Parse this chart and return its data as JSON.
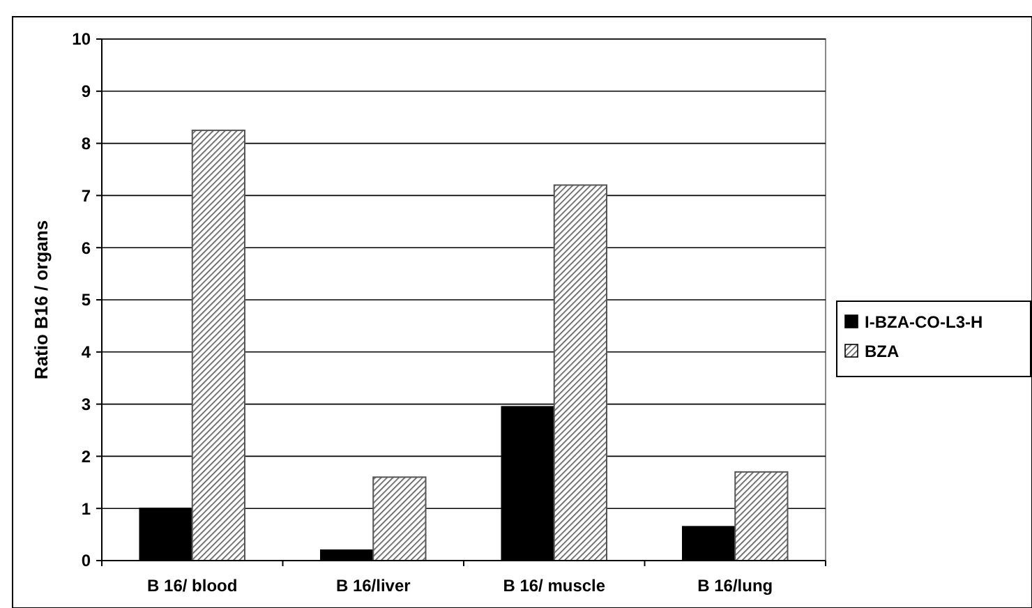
{
  "chart_data": {
    "type": "bar",
    "ylabel": "Ratio B16 / organs",
    "categories": [
      "B 16/ blood",
      "B 16/liver",
      "B 16/ muscle",
      "B 16/lung"
    ],
    "series": [
      {
        "name": "I-BZA-CO-L3-H",
        "color": "#000000",
        "values": [
          1.0,
          0.2,
          2.95,
          0.65
        ]
      },
      {
        "name": "BZA",
        "color": "#555555",
        "values": [
          8.25,
          1.6,
          7.2,
          1.7
        ]
      }
    ],
    "ylim": [
      0,
      10
    ],
    "yticks": [
      0,
      1,
      2,
      3,
      4,
      5,
      6,
      7,
      8,
      9,
      10
    ],
    "grid": "y",
    "legend": "right"
  }
}
